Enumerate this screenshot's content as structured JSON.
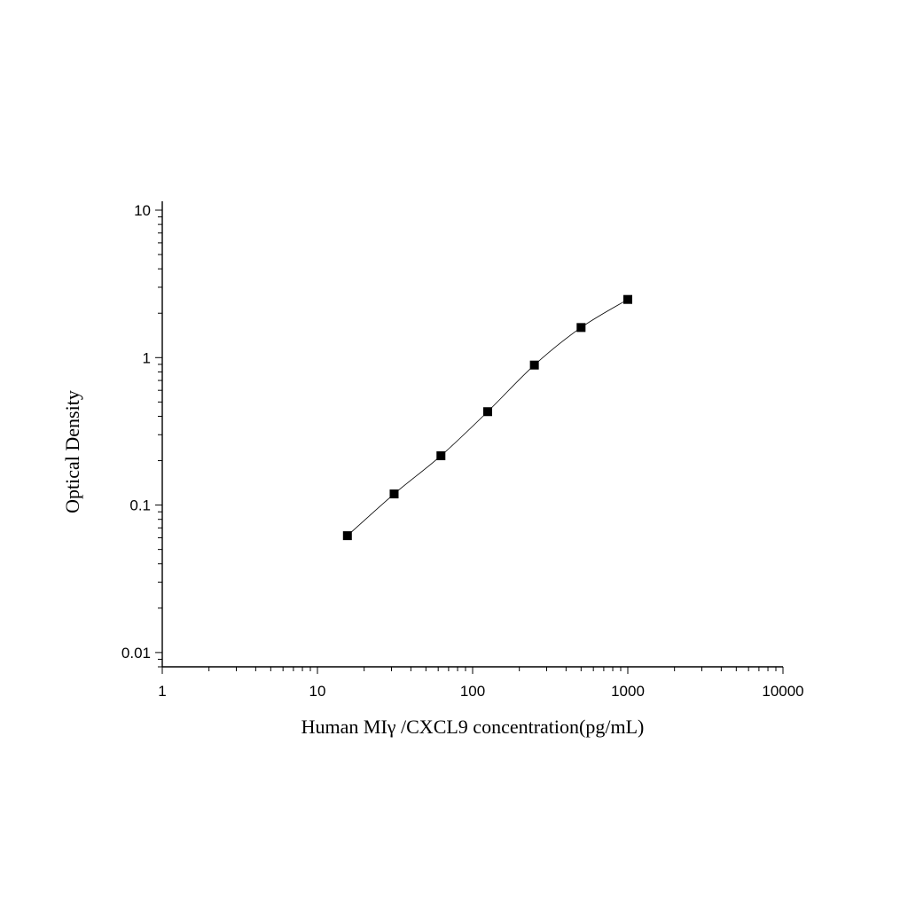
{
  "chart_data": {
    "type": "scatter",
    "title": "",
    "xlabel": "Human MIγ  /CXCL9 concentration(pg/mL)",
    "ylabel": "Optical Density",
    "xscale": "log",
    "yscale": "log",
    "xlim": [
      1,
      10000
    ],
    "ylim": [
      0.008,
      10
    ],
    "x_ticks": [
      {
        "value": 1,
        "label": "1"
      },
      {
        "value": 10,
        "label": "10"
      },
      {
        "value": 100,
        "label": "100"
      },
      {
        "value": 1000,
        "label": "1000"
      },
      {
        "value": 10000,
        "label": "10000"
      }
    ],
    "y_ticks": [
      {
        "value": 0.01,
        "label": "0.01"
      },
      {
        "value": 0.1,
        "label": "0.1"
      },
      {
        "value": 1,
        "label": "1"
      },
      {
        "value": 10,
        "label": "10"
      }
    ],
    "grid": false,
    "legend": "none",
    "marker": "square",
    "marker_color": "#000000",
    "curve": "smooth fitted line through points",
    "series": [
      {
        "x": [
          15.6,
          31.2,
          62.5,
          125,
          250,
          500,
          1000
        ],
        "y": [
          0.062,
          0.119,
          0.216,
          0.43,
          0.89,
          1.6,
          2.48
        ]
      }
    ]
  }
}
